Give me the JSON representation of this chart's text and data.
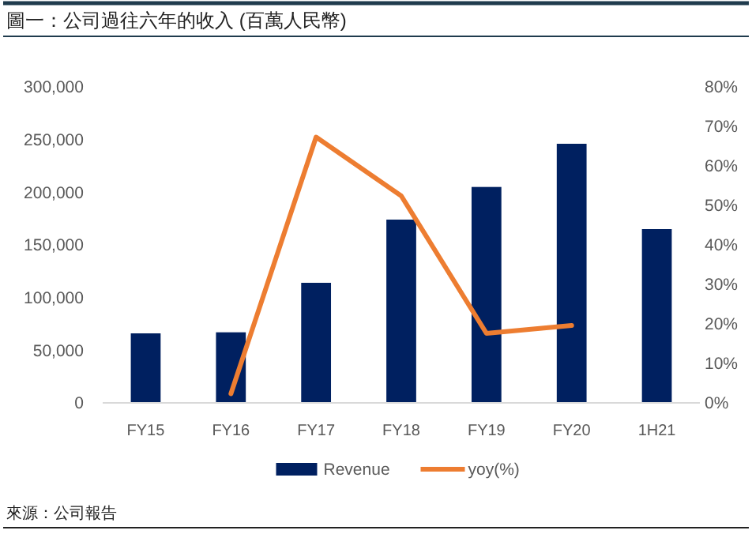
{
  "chart_data": {
    "type": "bar",
    "title": "圖一：公司過往六年的收入 (百萬人民幣)",
    "categories": [
      "FY15",
      "FY16",
      "FY17",
      "FY18",
      "FY19",
      "FY20",
      "1H21"
    ],
    "series": [
      {
        "name": "Revenue",
        "color": "#002060",
        "values": [
          66000,
          67000,
          114000,
          174000,
          205000,
          246000,
          165000
        ]
      },
      {
        "name": "yoy(%)",
        "type": "line",
        "axis": "y2",
        "color": "#ed7d31",
        "values": [
          null,
          2.3,
          67.3,
          52.4,
          17.6,
          19.6,
          null
        ]
      }
    ],
    "ylim": [
      0,
      300000
    ],
    "yticks": [
      {
        "value": 0,
        "label": "0"
      },
      {
        "value": 50000,
        "label": "50,000"
      },
      {
        "value": 100000,
        "label": "100,000"
      },
      {
        "value": 150000,
        "label": "150,000"
      },
      {
        "value": 200000,
        "label": "200,000"
      },
      {
        "value": 250000,
        "label": "250,000"
      },
      {
        "value": 300000,
        "label": "300,000"
      }
    ],
    "y2lim": [
      0,
      80
    ],
    "y2ticks": [
      {
        "value": 0,
        "label": "0%"
      },
      {
        "value": 10,
        "label": "10%"
      },
      {
        "value": 20,
        "label": "20%"
      },
      {
        "value": 30,
        "label": "30%"
      },
      {
        "value": 40,
        "label": "40%"
      },
      {
        "value": 50,
        "label": "50%"
      },
      {
        "value": 60,
        "label": "60%"
      },
      {
        "value": 70,
        "label": "70%"
      },
      {
        "value": 80,
        "label": "80%"
      }
    ],
    "legend": "bottom",
    "grid": false,
    "marker": "none",
    "line_style": "solid",
    "annotations": [
      "來源：公司報告"
    ]
  }
}
